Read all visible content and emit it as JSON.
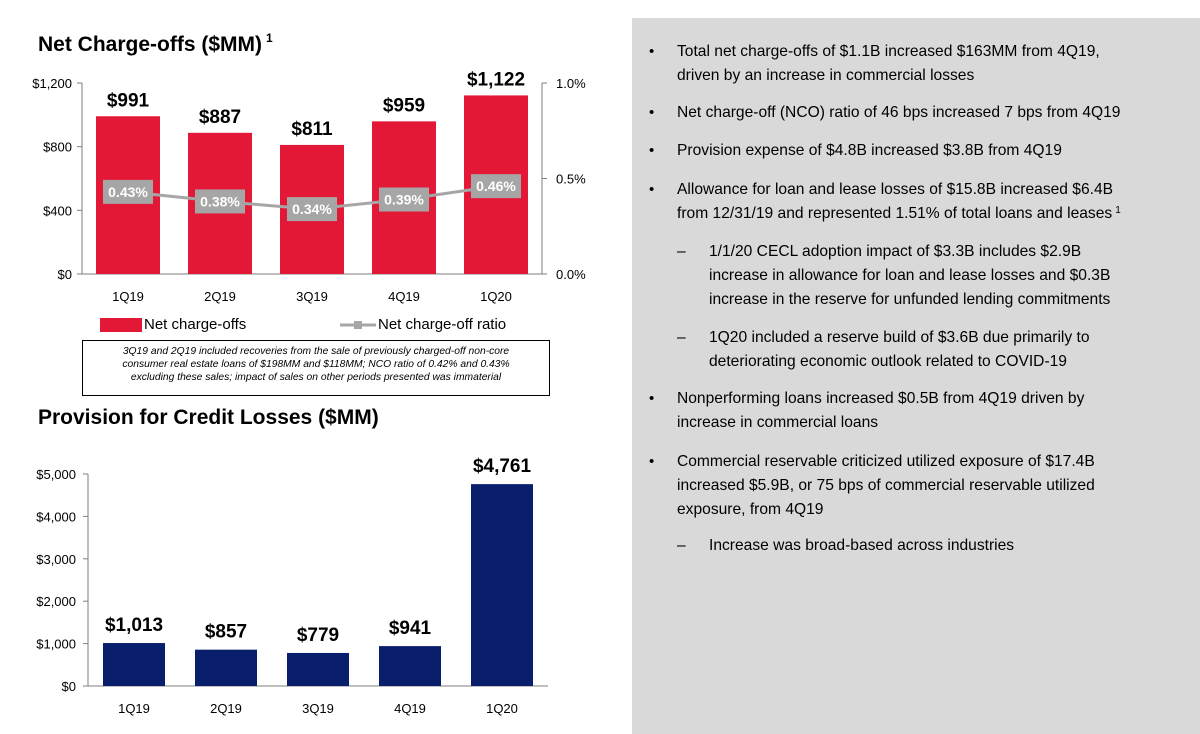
{
  "colors": {
    "nco_bar": "#e31837",
    "provision_bar": "#0a1f6b",
    "ratio_line": "#a6a6a6",
    "ratio_box": "#a6a6a6",
    "panel_bg": "#d9d9d9"
  },
  "chart_data": [
    {
      "type": "bar",
      "title": "Net Charge-offs ($MM)",
      "title_footnote": "1",
      "categories": [
        "1Q19",
        "2Q19",
        "3Q19",
        "4Q19",
        "1Q20"
      ],
      "series": [
        {
          "name": "Net charge-offs",
          "axis": "left",
          "values": [
            991,
            887,
            811,
            959,
            1122
          ],
          "value_labels": [
            "$991",
            "$887",
            "$811",
            "$959",
            "$1,122"
          ]
        },
        {
          "name": "Net charge-off ratio",
          "type": "line",
          "axis": "right",
          "values": [
            0.43,
            0.38,
            0.34,
            0.39,
            0.46
          ],
          "value_labels": [
            "0.43%",
            "0.38%",
            "0.34%",
            "0.39%",
            "0.46%"
          ]
        }
      ],
      "ylim": [
        0,
        1200
      ],
      "yticks": [
        0,
        400,
        800,
        1200
      ],
      "ytick_labels": [
        "$0",
        "$400",
        "$800",
        "$1,200"
      ],
      "y2lim": [
        0,
        1.0
      ],
      "y2ticks": [
        0,
        0.5,
        1.0
      ],
      "y2tick_labels": [
        "0.0%",
        "0.5%",
        "1.0%"
      ],
      "legend": [
        "Net charge-offs",
        "Net charge-off ratio"
      ],
      "footnote": "3Q19 and 2Q19 included recoveries from the sale of previously charged-off non-core consumer real estate loans of $198MM and $118MM; NCO ratio of 0.42% and 0.43% excluding these sales; impact of sales on other periods presented was immaterial",
      "footnote_lines": [
        "3Q19 and 2Q19 included recoveries from the sale of previously charged-off non-core",
        "consumer real estate loans of $198MM and $118MM; NCO ratio of 0.42% and 0.43%",
        "excluding these sales; impact of sales on other periods presented was immaterial"
      ]
    },
    {
      "type": "bar",
      "title": "Provision for Credit Losses ($MM)",
      "categories": [
        "1Q19",
        "2Q19",
        "3Q19",
        "4Q19",
        "1Q20"
      ],
      "values": [
        1013,
        857,
        779,
        941,
        4761
      ],
      "value_labels": [
        "$1,013",
        "$857",
        "$779",
        "$941",
        "$4,761"
      ],
      "ylim": [
        0,
        5000
      ],
      "yticks": [
        0,
        1000,
        2000,
        3000,
        4000,
        5000
      ],
      "ytick_labels": [
        "$0",
        "$1,000",
        "$2,000",
        "$3,000",
        "$4,000",
        "$5,000"
      ]
    }
  ],
  "bullets": [
    {
      "text": "Total net charge-offs of $1.1B increased $163MM from 4Q19,",
      "text2": "driven by an increase in commercial losses"
    },
    {
      "text": "Net charge-off (NCO) ratio of 46 bps increased 7 bps from 4Q19"
    },
    {
      "text": "Provision expense of $4.8B increased $3.8B from 4Q19"
    },
    {
      "text": "Allowance for loan and lease losses of $15.8B increased $6.4B",
      "text2": "from 12/31/19 and represented 1.51% of total loans and leases",
      "sup": "1"
    },
    {
      "text": "Nonperforming loans increased $0.5B from 4Q19 driven by",
      "text2": "increase in commercial loans"
    },
    {
      "text": "Commercial reservable criticized utilized exposure of $17.4B",
      "text2": "increased $5.9B, or 75 bps of commercial reservable utilized",
      "text3": "exposure, from 4Q19"
    }
  ],
  "sub_bullets": [
    {
      "text": "1/1/20 CECL adoption impact of $3.3B includes $2.9B",
      "text2": "increase in allowance for loan and lease losses and $0.3B",
      "text3": "increase in the reserve for unfunded lending commitments"
    },
    {
      "text": "1Q20 included a reserve build of $3.6B due primarily to",
      "text2": "deteriorating economic outlook related to COVID-19"
    },
    {
      "text": "Increase was broad-based across industries"
    }
  ],
  "markers": {
    "bullet": "•",
    "dash": "–"
  }
}
